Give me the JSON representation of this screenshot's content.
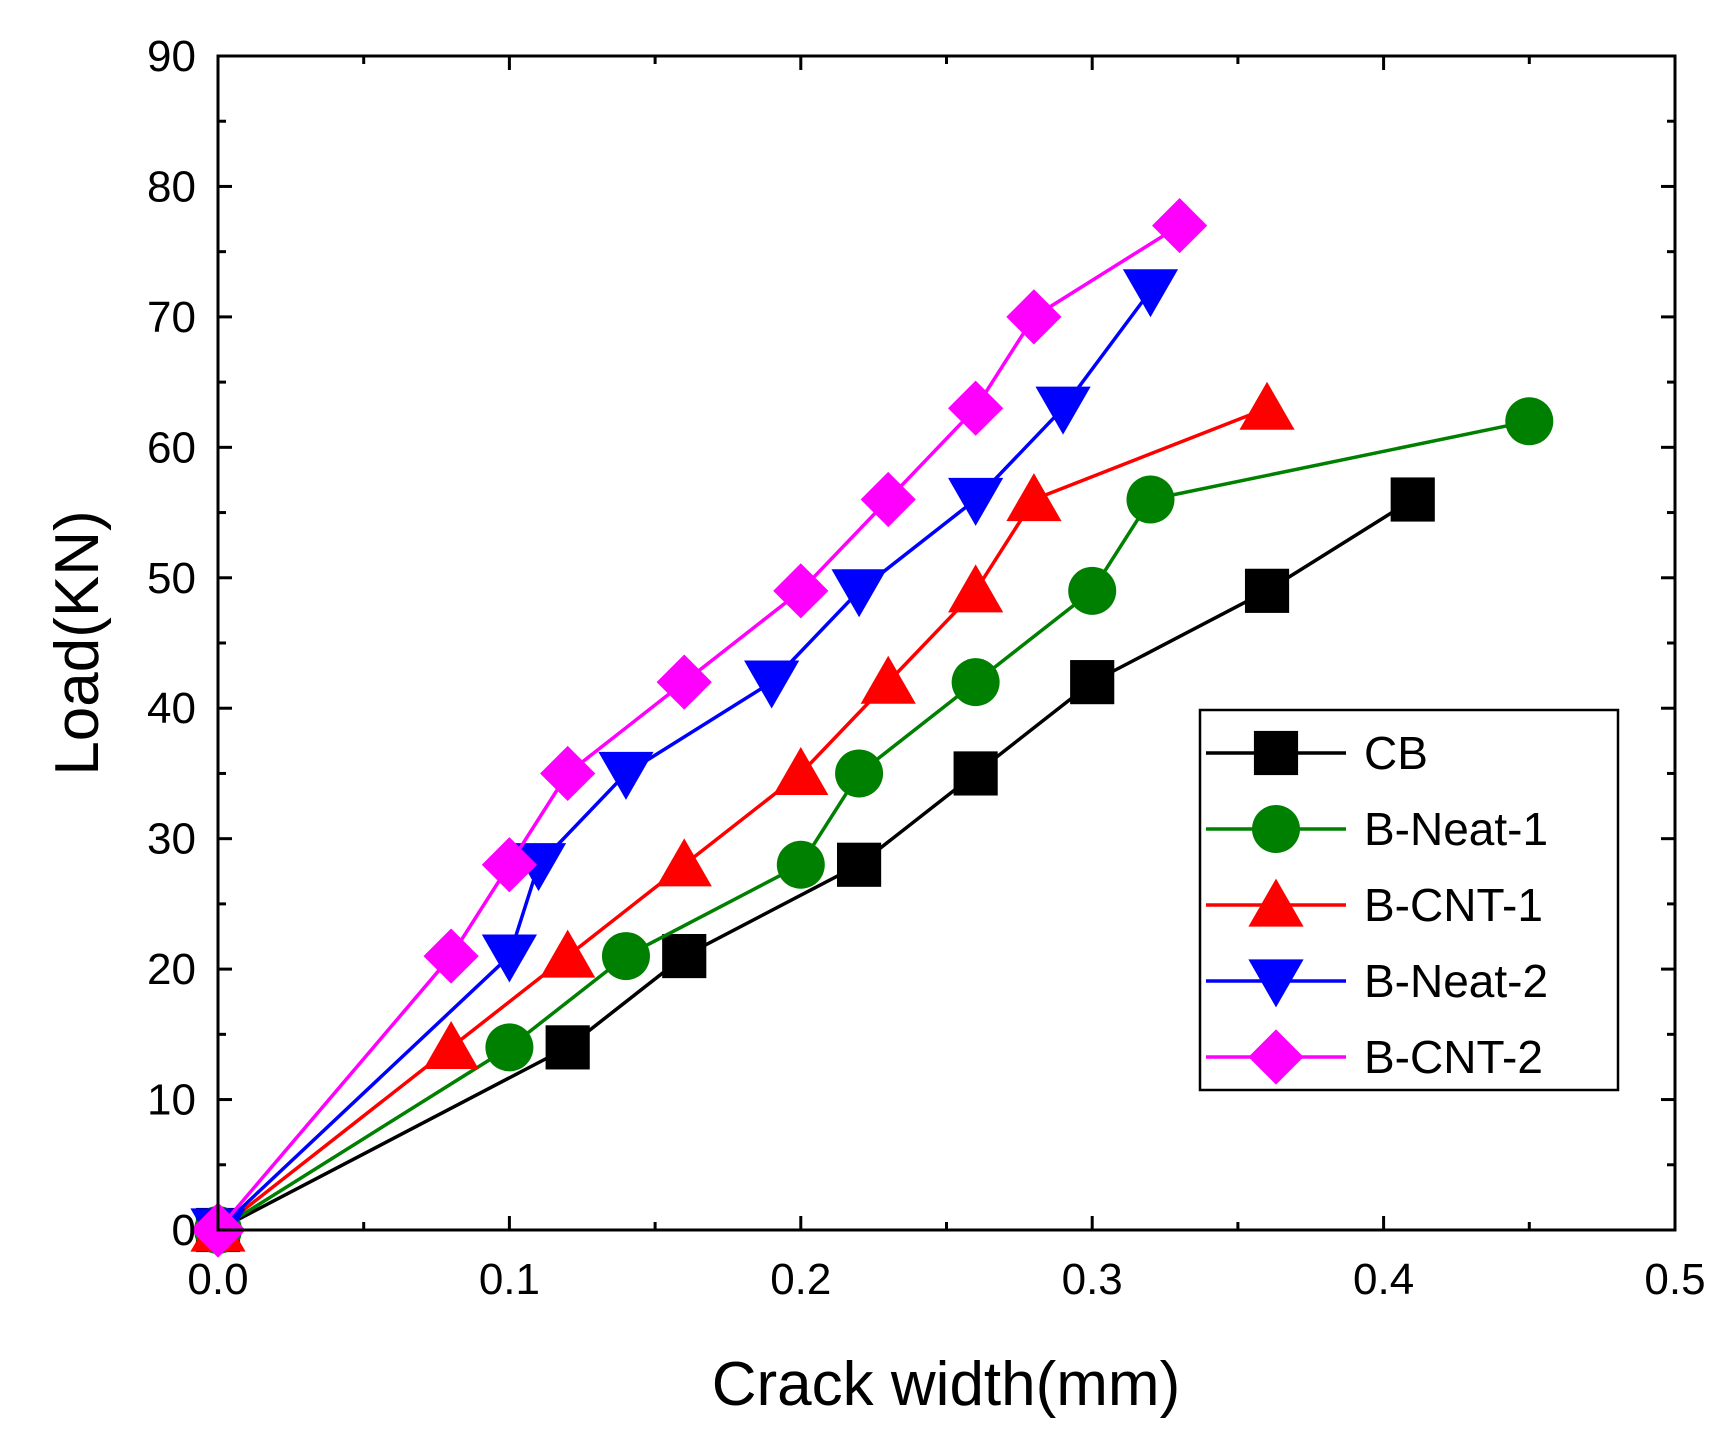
{
  "chart_data": {
    "type": "line",
    "title": "",
    "xlabel": "Crack width(mm)",
    "ylabel": "Load(KN)",
    "xlim": [
      0.0,
      0.5
    ],
    "ylim": [
      0,
      90
    ],
    "xticks": [
      "0.0",
      "0.1",
      "0.2",
      "0.3",
      "0.4",
      "0.5"
    ],
    "yticks": [
      "0",
      "10",
      "20",
      "30",
      "40",
      "50",
      "60",
      "70",
      "80",
      "90"
    ],
    "grid": false,
    "legend_position": "lower-right",
    "series": [
      {
        "name": "CB",
        "color": "#000000",
        "marker": "square",
        "x": [
          0,
          0.12,
          0.16,
          0.22,
          0.26,
          0.3,
          0.36,
          0.41
        ],
        "y": [
          0,
          14,
          21,
          28,
          35,
          42,
          49,
          56
        ]
      },
      {
        "name": "B-Neat-1",
        "color": "#008000",
        "marker": "circle",
        "x": [
          0,
          0.1,
          0.14,
          0.2,
          0.22,
          0.26,
          0.3,
          0.32,
          0.45
        ],
        "y": [
          0,
          14,
          21,
          28,
          35,
          42,
          49,
          56,
          62
        ]
      },
      {
        "name": "B-CNT-1",
        "color": "#ff0000",
        "marker": "triangle-up",
        "x": [
          0,
          0.08,
          0.12,
          0.16,
          0.2,
          0.23,
          0.26,
          0.28,
          0.36
        ],
        "y": [
          0,
          14,
          21,
          28,
          35,
          42,
          49,
          56,
          63
        ]
      },
      {
        "name": "B-Neat-2",
        "color": "#0000ff",
        "marker": "triangle-down",
        "x": [
          0,
          0.1,
          0.11,
          0.14,
          0.19,
          0.22,
          0.26,
          0.29,
          0.32
        ],
        "y": [
          0,
          21,
          28,
          35,
          42,
          49,
          56,
          63,
          72
        ]
      },
      {
        "name": "B-CNT-2",
        "color": "#ff00ff",
        "marker": "diamond",
        "x": [
          0,
          0.08,
          0.1,
          0.12,
          0.16,
          0.2,
          0.23,
          0.26,
          0.28,
          0.33
        ],
        "y": [
          0,
          21,
          28,
          35,
          42,
          49,
          56,
          63,
          70,
          77
        ]
      }
    ]
  }
}
